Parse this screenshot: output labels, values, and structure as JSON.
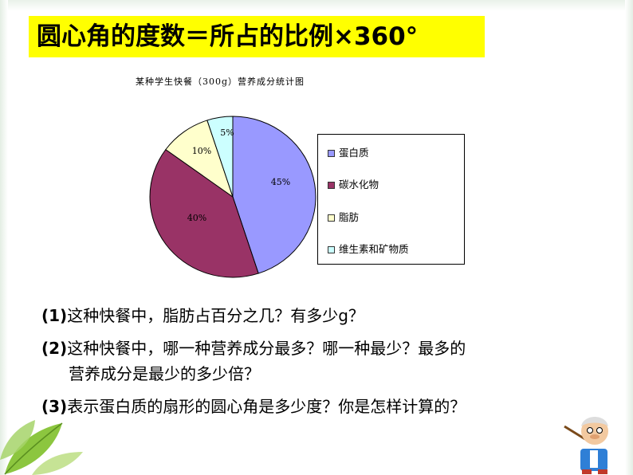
{
  "formula": "圆心角的度数＝所占的比例×360°",
  "chart_data": {
    "type": "pie",
    "title": "某种学生快餐（300g）营养成分统计图",
    "categories": [
      "蛋白质",
      "碳水化物",
      "脂肪",
      "维生素和矿物质"
    ],
    "values": [
      45,
      40,
      10,
      5
    ],
    "labels": [
      "45%",
      "40%",
      "10%",
      "5%"
    ],
    "colors": [
      "#9999ff",
      "#993366",
      "#ffffcc",
      "#ccffff"
    ],
    "legend_position": "right"
  },
  "questions": [
    {
      "num": "(1)",
      "lines": [
        "这种快餐中，脂肪占百分之几？有多少g？"
      ]
    },
    {
      "num": "(2)",
      "lines": [
        "这种快餐中，哪一种营养成分最多？哪一种最少？最多的",
        "营养成分是最少的多少倍？"
      ]
    },
    {
      "num": "(3)",
      "lines": [
        "表示蛋白质的扇形的圆心角是多少度？你是怎样计算的？"
      ]
    }
  ],
  "icons": {
    "decoration_left": "leaves-icon",
    "decoration_right": "teacher-cartoon-icon"
  }
}
